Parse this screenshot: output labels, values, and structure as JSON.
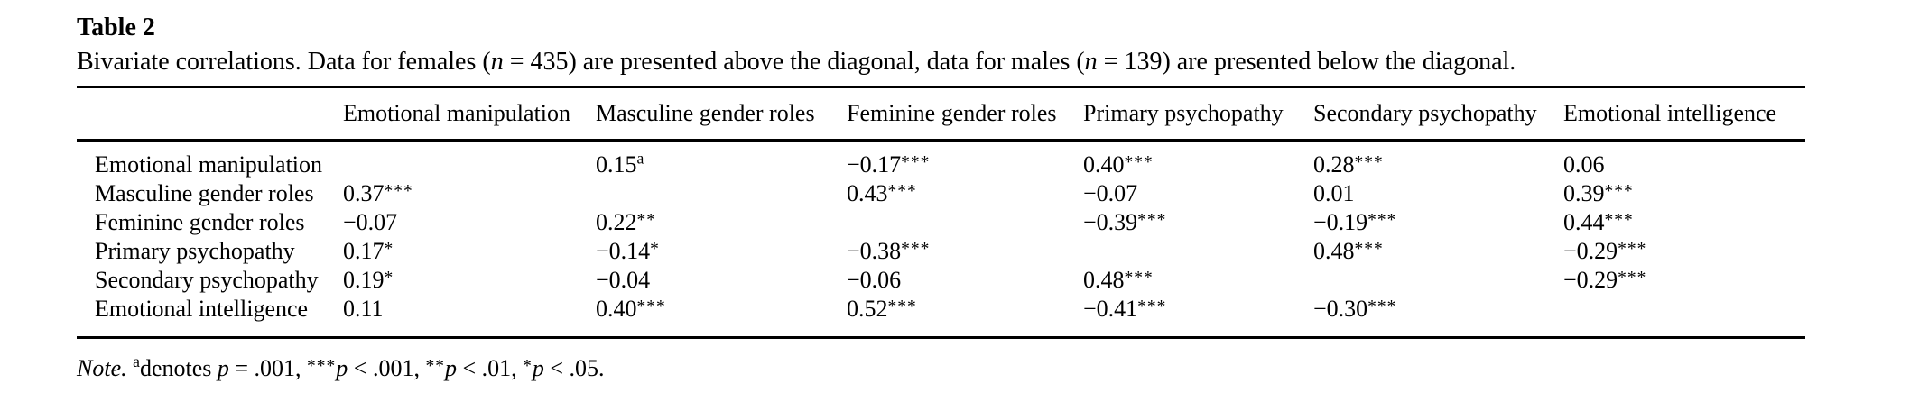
{
  "colors": {
    "text": "#000000",
    "background": "#ffffff",
    "rule": "#000000"
  },
  "table": {
    "title": "Table 2",
    "caption_segments": [
      {
        "t": "Bivariate correlations. Data for females ("
      },
      {
        "t": "n",
        "style": "italic"
      },
      {
        "t": " = 435) are presented above the diagonal, data for males ("
      },
      {
        "t": "n",
        "style": "italic"
      },
      {
        "t": " = 139) are presented below the diagonal."
      }
    ],
    "columns": [
      "Emotional manipulation",
      "Masculine gender roles",
      "Feminine gender roles",
      "Primary psychopathy",
      "Secondary psychopathy",
      "Emotional intelligence"
    ],
    "rows": [
      {
        "label": "Emotional manipulation",
        "cells": [
          {
            "v": ""
          },
          {
            "v": "0.15",
            "sup": "a"
          },
          {
            "v": "−0.17",
            "stars": "***"
          },
          {
            "v": "0.40",
            "stars": "***"
          },
          {
            "v": "0.28",
            "stars": "***"
          },
          {
            "v": "0.06"
          }
        ]
      },
      {
        "label": "Masculine gender roles",
        "cells": [
          {
            "v": "0.37",
            "stars": "***"
          },
          {
            "v": ""
          },
          {
            "v": "0.43",
            "stars": "***"
          },
          {
            "v": "−0.07"
          },
          {
            "v": "0.01"
          },
          {
            "v": "0.39",
            "stars": "***"
          }
        ]
      },
      {
        "label": "Feminine gender roles",
        "cells": [
          {
            "v": "−0.07"
          },
          {
            "v": "0.22",
            "stars": "**"
          },
          {
            "v": ""
          },
          {
            "v": "−0.39",
            "stars": "***"
          },
          {
            "v": "−0.19",
            "stars": "***"
          },
          {
            "v": "0.44",
            "stars": "***"
          }
        ]
      },
      {
        "label": "Primary psychopathy",
        "cells": [
          {
            "v": "0.17",
            "stars": "*"
          },
          {
            "v": "−0.14",
            "stars": "*"
          },
          {
            "v": "−0.38",
            "stars": "***"
          },
          {
            "v": ""
          },
          {
            "v": "0.48",
            "stars": "***"
          },
          {
            "v": "−0.29",
            "stars": "***"
          }
        ]
      },
      {
        "label": "Secondary psychopathy",
        "cells": [
          {
            "v": "0.19",
            "stars": "*"
          },
          {
            "v": "−0.04"
          },
          {
            "v": "−0.06"
          },
          {
            "v": "0.48",
            "stars": "***"
          },
          {
            "v": ""
          },
          {
            "v": "−0.29",
            "stars": "***"
          }
        ]
      },
      {
        "label": "Emotional intelligence",
        "cells": [
          {
            "v": "0.11"
          },
          {
            "v": "0.40",
            "stars": "***"
          },
          {
            "v": "0.52",
            "stars": "***"
          },
          {
            "v": "−0.41",
            "stars": "***"
          },
          {
            "v": "−0.30",
            "stars": "***"
          },
          {
            "v": ""
          }
        ]
      }
    ],
    "note_segments": [
      {
        "t": "Note.",
        "style": "italic"
      },
      {
        "t": " "
      },
      {
        "t": "a",
        "style": "sup"
      },
      {
        "t": "denotes "
      },
      {
        "t": "p",
        "style": "italic"
      },
      {
        "t": " = .001, "
      },
      {
        "t": "***",
        "style": "stars"
      },
      {
        "t": "p",
        "style": "italic"
      },
      {
        "t": " < .001, "
      },
      {
        "t": "**",
        "style": "stars"
      },
      {
        "t": "p",
        "style": "italic"
      },
      {
        "t": " < .01, "
      },
      {
        "t": "*",
        "style": "stars"
      },
      {
        "t": "p",
        "style": "italic"
      },
      {
        "t": " < .05."
      }
    ]
  }
}
